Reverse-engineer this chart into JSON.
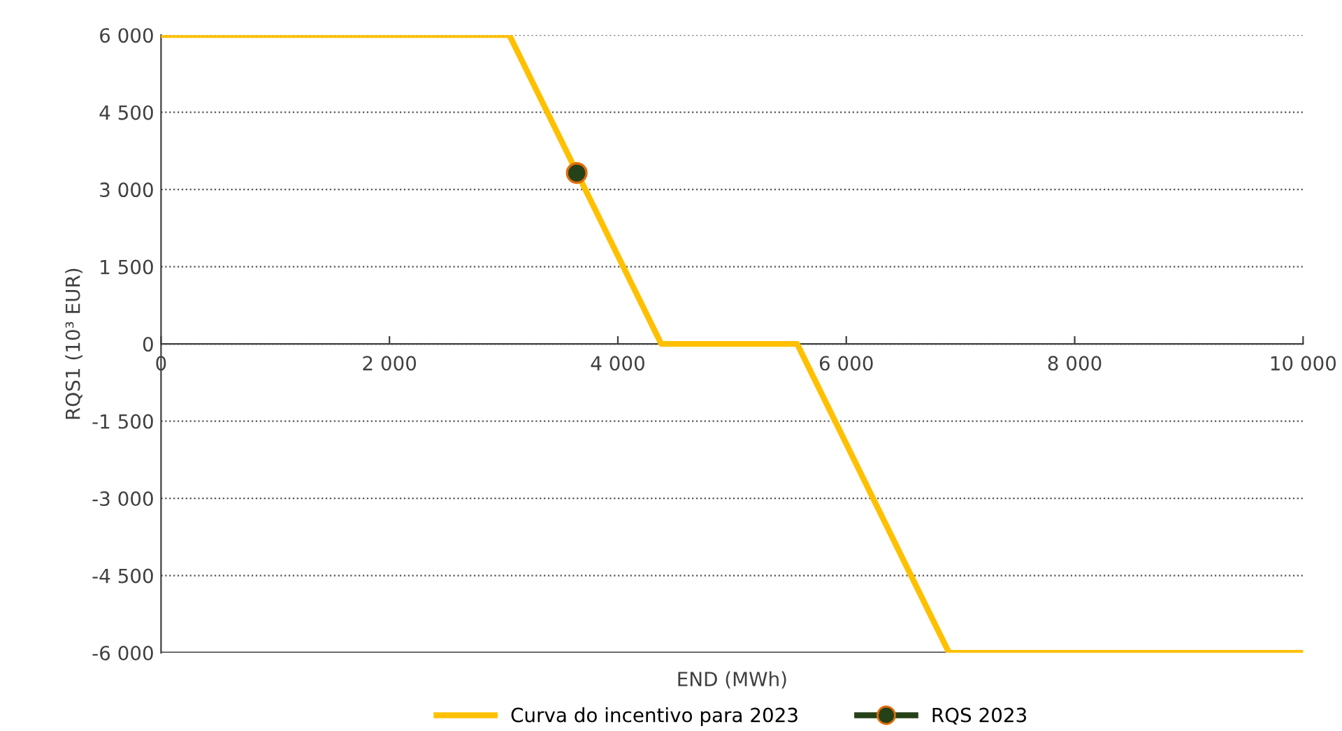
{
  "chart_data": {
    "type": "line",
    "xlabel": "END (MWh)",
    "ylabel": "RQS1 (10³ EUR)",
    "xlim": [
      0,
      10000
    ],
    "ylim": [
      -6000,
      6000
    ],
    "xticks": [
      {
        "value": 0,
        "label": "0"
      },
      {
        "value": 2000,
        "label": "2 000"
      },
      {
        "value": 4000,
        "label": "4 000"
      },
      {
        "value": 6000,
        "label": "6 000"
      },
      {
        "value": 8000,
        "label": "8 000"
      },
      {
        "value": 10000,
        "label": "10 000"
      }
    ],
    "yticks": [
      {
        "value": -6000,
        "label": "-6 000"
      },
      {
        "value": -4500,
        "label": "-4 500"
      },
      {
        "value": -3000,
        "label": "-3 000"
      },
      {
        "value": -1500,
        "label": "-1 500"
      },
      {
        "value": 0,
        "label": "0"
      },
      {
        "value": 1500,
        "label": "1 500"
      },
      {
        "value": 3000,
        "label": "3 000"
      },
      {
        "value": 4500,
        "label": "4 500"
      },
      {
        "value": 6000,
        "label": "6 000"
      }
    ],
    "grid": "y",
    "legend": "bottom",
    "series": [
      {
        "name": "Curva do incentivo para 2023",
        "color": "#ffc000",
        "x": [
          0,
          3050,
          4380,
          5570,
          6900,
          10000
        ],
        "values": [
          6000,
          6000,
          0,
          0,
          -6000,
          -6000
        ],
        "marker": "none"
      },
      {
        "name": "RQS 2023",
        "type": "scatter",
        "color": "#254117",
        "x": [
          3640
        ],
        "values": [
          3320
        ],
        "marker": "circle"
      }
    ]
  }
}
